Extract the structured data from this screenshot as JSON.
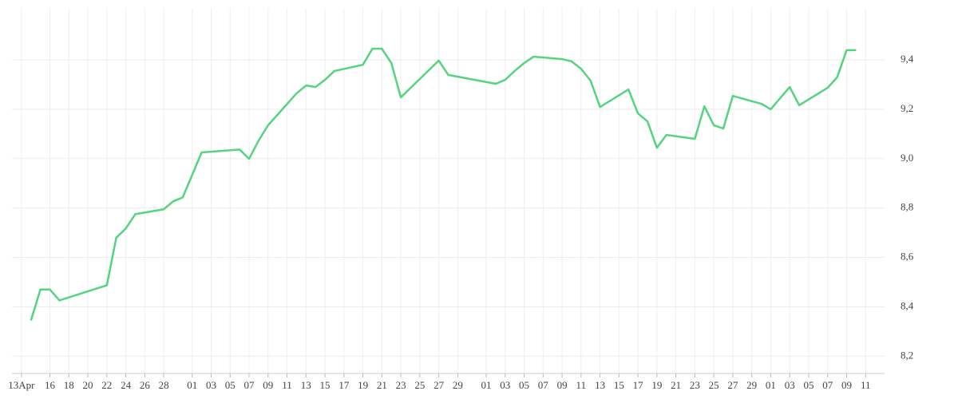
{
  "chart_data": {
    "type": "line",
    "color": "#55d47f",
    "grid": true,
    "x": [
      "04-14",
      "04-15",
      "04-16",
      "04-17",
      "04-22",
      "04-23",
      "04-24",
      "04-25",
      "04-28",
      "04-29",
      "04-30",
      "05-02",
      "05-06",
      "05-07",
      "05-08",
      "05-09",
      "05-12",
      "05-13",
      "05-14",
      "05-15",
      "05-16",
      "05-19",
      "05-20",
      "05-21",
      "05-22",
      "05-23",
      "05-27",
      "05-28",
      "06-02",
      "06-03",
      "06-04",
      "06-05",
      "06-06",
      "06-09",
      "06-10",
      "06-11",
      "06-12",
      "06-13",
      "06-16",
      "06-17",
      "06-18",
      "06-19",
      "06-20",
      "06-23",
      "06-24",
      "06-25",
      "06-26",
      "06-27",
      "06-30",
      "07-01",
      "07-02",
      "07-03",
      "07-04",
      "07-07",
      "07-08",
      "07-09",
      "07-10"
    ],
    "values": [
      8.345,
      8.47,
      8.47,
      8.426,
      8.487,
      8.68,
      8.717,
      8.775,
      8.795,
      8.827,
      8.843,
      9.025,
      9.037,
      8.999,
      9.073,
      9.135,
      9.264,
      9.296,
      9.29,
      9.319,
      9.355,
      9.38,
      9.445,
      9.445,
      9.387,
      9.248,
      9.397,
      9.339,
      9.303,
      9.319,
      9.355,
      9.387,
      9.413,
      9.403,
      9.394,
      9.364,
      9.316,
      9.209,
      9.28,
      9.183,
      9.151,
      9.044,
      9.096,
      9.08,
      9.212,
      9.135,
      9.122,
      9.254,
      9.222,
      9.2,
      9.245,
      9.29,
      9.216,
      9.287,
      9.329,
      9.439,
      9.439
    ],
    "xlim": [
      "04-12",
      "07-13"
    ],
    "xticks": [
      {
        "value": "04-13",
        "label": "13Apr"
      },
      {
        "value": "04-16",
        "label": "16"
      },
      {
        "value": "04-18",
        "label": "18"
      },
      {
        "value": "04-20",
        "label": "20"
      },
      {
        "value": "04-22",
        "label": "22"
      },
      {
        "value": "04-24",
        "label": "24"
      },
      {
        "value": "04-26",
        "label": "26"
      },
      {
        "value": "04-28",
        "label": "28"
      },
      {
        "value": "05-01",
        "label": "01"
      },
      {
        "value": "05-03",
        "label": "03"
      },
      {
        "value": "05-05",
        "label": "05"
      },
      {
        "value": "05-07",
        "label": "07"
      },
      {
        "value": "05-09",
        "label": "09"
      },
      {
        "value": "05-11",
        "label": "11"
      },
      {
        "value": "05-13",
        "label": "13"
      },
      {
        "value": "05-15",
        "label": "15"
      },
      {
        "value": "05-17",
        "label": "17"
      },
      {
        "value": "05-19",
        "label": "19"
      },
      {
        "value": "05-21",
        "label": "21"
      },
      {
        "value": "05-23",
        "label": "23"
      },
      {
        "value": "05-25",
        "label": "25"
      },
      {
        "value": "05-27",
        "label": "27"
      },
      {
        "value": "05-29",
        "label": "29"
      },
      {
        "value": "06-01",
        "label": "01"
      },
      {
        "value": "06-03",
        "label": "03"
      },
      {
        "value": "06-05",
        "label": "05"
      },
      {
        "value": "06-07",
        "label": "07"
      },
      {
        "value": "06-09",
        "label": "09"
      },
      {
        "value": "06-11",
        "label": "11"
      },
      {
        "value": "06-13",
        "label": "13"
      },
      {
        "value": "06-15",
        "label": "15"
      },
      {
        "value": "06-17",
        "label": "17"
      },
      {
        "value": "06-19",
        "label": "19"
      },
      {
        "value": "06-21",
        "label": "21"
      },
      {
        "value": "06-23",
        "label": "23"
      },
      {
        "value": "06-25",
        "label": "25"
      },
      {
        "value": "06-27",
        "label": "27"
      },
      {
        "value": "06-29",
        "label": "29"
      },
      {
        "value": "07-01",
        "label": "01"
      },
      {
        "value": "07-03",
        "label": "03"
      },
      {
        "value": "07-05",
        "label": "05"
      },
      {
        "value": "07-07",
        "label": "07"
      },
      {
        "value": "07-09",
        "label": "09"
      },
      {
        "value": "07-11",
        "label": "11"
      }
    ],
    "ylim": [
      8.13,
      9.61
    ],
    "yticks": [
      {
        "value": 8.2,
        "label": "8,2"
      },
      {
        "value": 8.4,
        "label": "8,4"
      },
      {
        "value": 8.6,
        "label": "8,6"
      },
      {
        "value": 8.8,
        "label": "8,8"
      },
      {
        "value": 9.0,
        "label": "9,0"
      },
      {
        "value": 9.2,
        "label": "9,2"
      },
      {
        "value": 9.4,
        "label": "9,4"
      }
    ]
  }
}
